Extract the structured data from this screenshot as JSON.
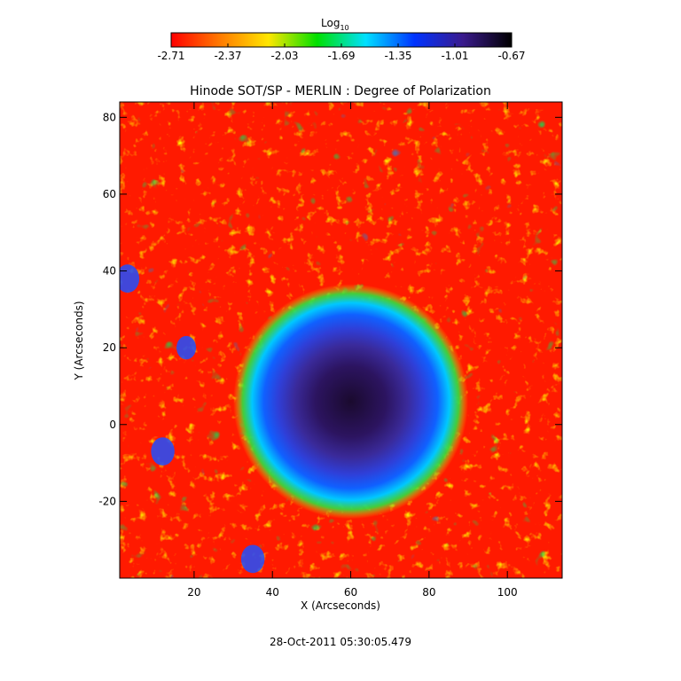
{
  "chart_data": {
    "type": "heatmap",
    "title": "Hinode SOT/SP - MERLIN : Degree of Polarization",
    "xlabel": "X (Arcseconds)",
    "ylabel": "Y (Arcseconds)",
    "xlim": [
      1,
      114
    ],
    "ylim": [
      -40,
      84
    ],
    "x_ticks": [
      20,
      40,
      60,
      80,
      100
    ],
    "y_ticks": [
      -20,
      0,
      20,
      40,
      60,
      80
    ],
    "colorbar": {
      "label": "Log",
      "label_subscript": "10",
      "range": [
        -2.71,
        -0.67
      ],
      "ticks": [
        "-2.71",
        "-2.37",
        "-2.03",
        "-1.69",
        "-1.35",
        "-1.01",
        "-0.67"
      ],
      "colors": [
        "#ff0000",
        "#ff7a00",
        "#ffe600",
        "#00e000",
        "#00e0ff",
        "#0033ff",
        "#3a1a8c",
        "#000000"
      ]
    },
    "features": {
      "sunspot_center": [
        60,
        6
      ],
      "umbra_radius": 12,
      "penumbra_radius": 24,
      "umbra_value": -0.75,
      "penumbra_value": -1.1,
      "quiet_sun_value": -2.6
    },
    "timestamp": "28-Oct-2011 05:30:05.479"
  }
}
